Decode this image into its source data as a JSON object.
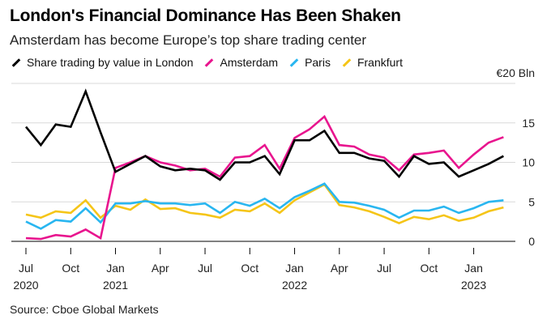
{
  "title": "London's Financial Dominance Has Been Shaken",
  "subtitle": "Amsterdam has become Europe’s top share trading center",
  "source": "Source: Cboe Global Markets",
  "chart_data": {
    "type": "line",
    "unit_label": "€20 Bln",
    "ylim": [
      0,
      20
    ],
    "yticks": [
      0,
      5,
      10,
      15
    ],
    "ytick_labels": [
      "0",
      "5",
      "10",
      "15"
    ],
    "grid": true,
    "legend_position": "top-left",
    "x": [
      "2020-07",
      "2020-08",
      "2020-09",
      "2020-10",
      "2020-11",
      "2020-12",
      "2021-01",
      "2021-02",
      "2021-03",
      "2021-04",
      "2021-05",
      "2021-06",
      "2021-07",
      "2021-08",
      "2021-09",
      "2021-10",
      "2021-11",
      "2021-12",
      "2022-01",
      "2022-02",
      "2022-03",
      "2022-04",
      "2022-05",
      "2022-06",
      "2022-07",
      "2022-08",
      "2022-09",
      "2022-10",
      "2022-11",
      "2022-12",
      "2023-01",
      "2023-02",
      "2023-03"
    ],
    "xticks": [
      {
        "x": "2020-07",
        "label": "Jul",
        "year": "2020"
      },
      {
        "x": "2020-10",
        "label": "Oct",
        "year": ""
      },
      {
        "x": "2021-01",
        "label": "Jan",
        "year": "2021"
      },
      {
        "x": "2021-04",
        "label": "Apr",
        "year": ""
      },
      {
        "x": "2021-07",
        "label": "Jul",
        "year": ""
      },
      {
        "x": "2021-10",
        "label": "Oct",
        "year": ""
      },
      {
        "x": "2022-01",
        "label": "Jan",
        "year": "2022"
      },
      {
        "x": "2022-04",
        "label": "Apr",
        "year": ""
      },
      {
        "x": "2022-07",
        "label": "Jul",
        "year": ""
      },
      {
        "x": "2022-10",
        "label": "Oct",
        "year": ""
      },
      {
        "x": "2023-01",
        "label": "Jan",
        "year": "2023"
      }
    ],
    "series": [
      {
        "name": "Share trading by value in London",
        "color": "#000000",
        "values": [
          14.5,
          12.2,
          14.8,
          14.5,
          19.0,
          13.8,
          8.8,
          9.8,
          10.8,
          9.5,
          9.0,
          9.2,
          9.0,
          7.8,
          10.0,
          10.0,
          10.8,
          8.5,
          12.8,
          12.8,
          14.0,
          11.2,
          11.2,
          10.5,
          10.2,
          8.2,
          10.8,
          9.8,
          10.0,
          8.2,
          9.0,
          9.8,
          10.8
        ]
      },
      {
        "name": "Amsterdam",
        "color": "#e8158e",
        "values": [
          0.4,
          0.3,
          0.8,
          0.6,
          1.5,
          0.4,
          9.3,
          10.0,
          10.8,
          10.0,
          9.6,
          9.0,
          9.2,
          8.2,
          10.6,
          10.8,
          12.2,
          9.2,
          13.1,
          14.2,
          15.8,
          12.2,
          12.0,
          11.0,
          10.6,
          9.0,
          11.0,
          11.2,
          11.5,
          9.3,
          11.0,
          12.5,
          13.2
        ]
      },
      {
        "name": "Paris",
        "color": "#29b6f0",
        "values": [
          2.5,
          1.6,
          2.7,
          2.5,
          4.2,
          2.4,
          4.8,
          4.8,
          5.1,
          4.8,
          4.8,
          4.6,
          4.8,
          3.6,
          5.0,
          4.5,
          5.4,
          4.2,
          5.6,
          6.4,
          7.3,
          5.0,
          4.9,
          4.5,
          4.0,
          3.0,
          3.9,
          3.9,
          4.4,
          3.6,
          4.2,
          5.0,
          5.2
        ]
      },
      {
        "name": "Frankfurt",
        "color": "#f5c518",
        "values": [
          3.4,
          3.0,
          3.8,
          3.6,
          5.2,
          3.0,
          4.5,
          4.0,
          5.3,
          4.1,
          4.2,
          3.6,
          3.4,
          3.0,
          4.0,
          3.8,
          4.8,
          3.6,
          5.2,
          6.2,
          7.2,
          4.6,
          4.3,
          3.8,
          3.1,
          2.3,
          3.1,
          2.8,
          3.3,
          2.6,
          3.0,
          3.8,
          4.3
        ]
      }
    ]
  }
}
